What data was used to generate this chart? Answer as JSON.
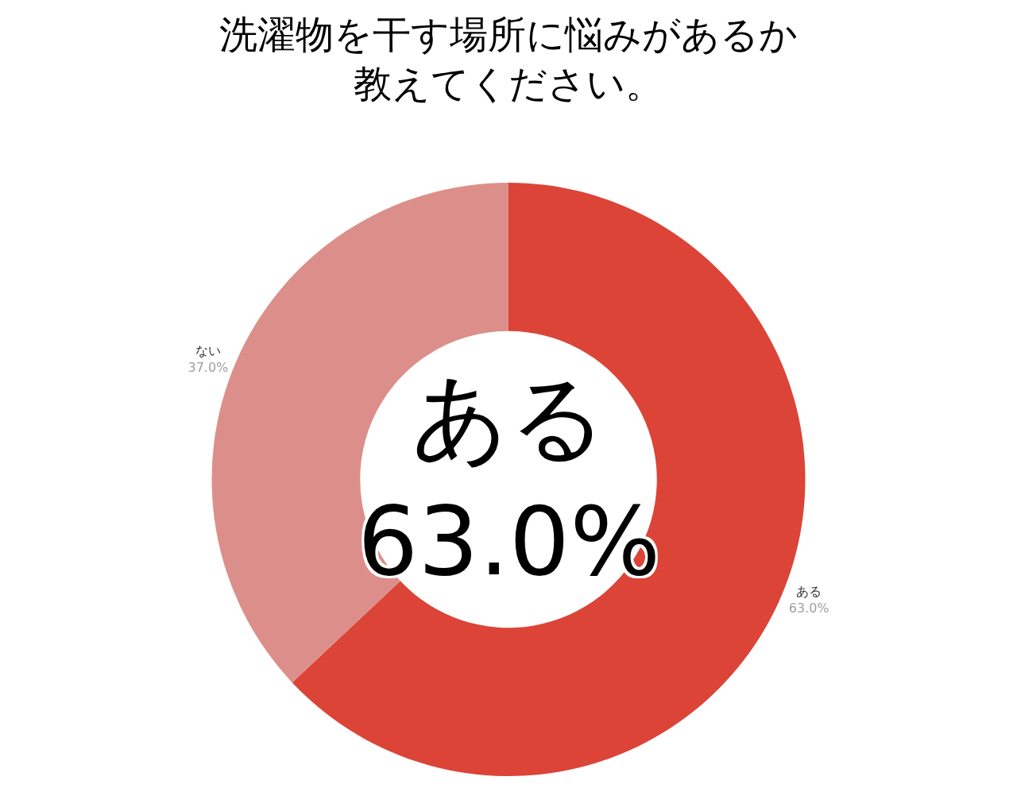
{
  "chart_data": {
    "type": "donut",
    "title": "洗濯物を干す場所に悩みがあるか教えてください。",
    "categories": [
      "ある",
      "ない"
    ],
    "values": [
      63.0,
      37.0
    ],
    "colors": [
      "#db4437",
      "#dc8f8a"
    ],
    "value_labels": [
      "63.0%",
      "37.0%"
    ],
    "legend": false,
    "annotations": [
      "ある\n63.0%"
    ]
  }
}
